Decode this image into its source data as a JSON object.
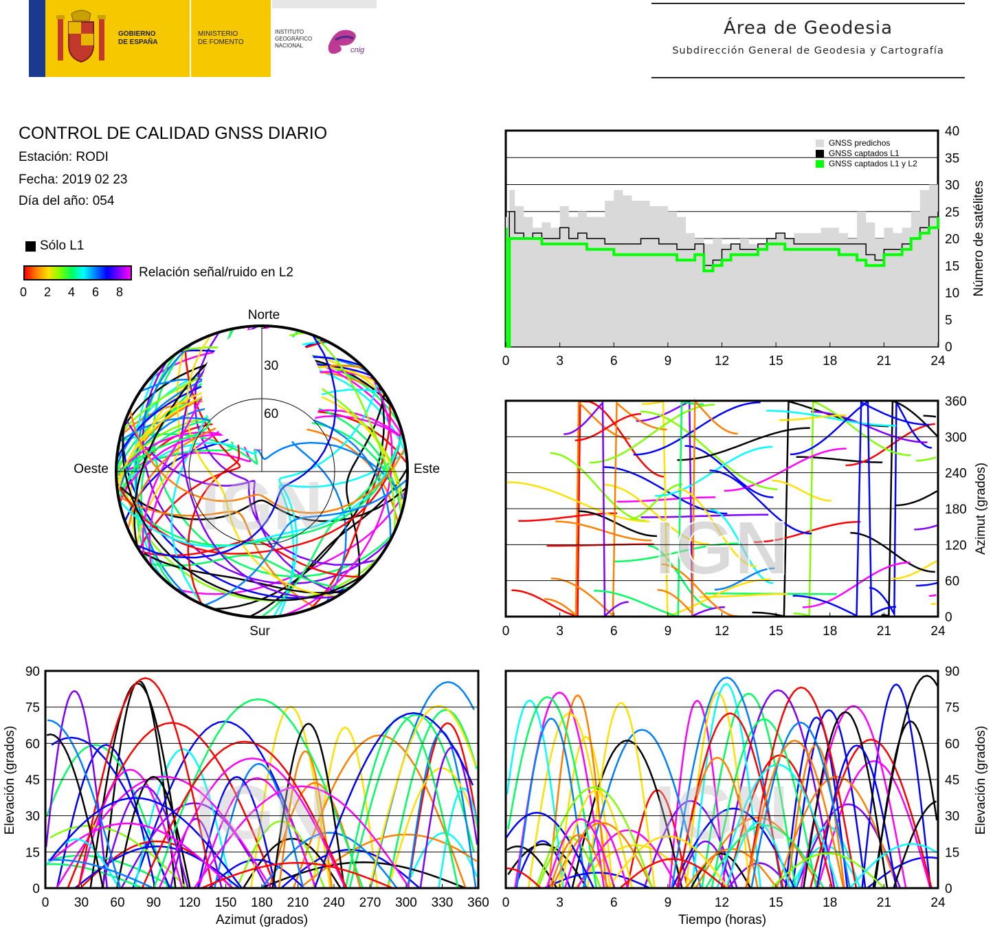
{
  "header": {
    "gov_line1": "GOBIERNO",
    "gov_line2": "DE ESPAÑA",
    "min_line1": "MINISTERIO",
    "min_line2": "DE FOMENTO",
    "ign_line1": "INSTITUTO",
    "ign_line2": "GEOGRÁFICO",
    "ign_line3": "NACIONAL",
    "cnig": "cnig",
    "area_title": "Área de Geodesia",
    "area_subtitle": "Subdirección General de Geodesia y Cartografía"
  },
  "report": {
    "title": "CONTROL DE CALIDAD GNSS DIARIO",
    "station": "Estación: RODI",
    "date": "Fecha: 2019 02 23",
    "doy": "Día del año: 054"
  },
  "legend": {
    "l1_only": "Sólo L1",
    "snr_label": "Relación señal/ruido en L2",
    "snr_ticks": [
      "0",
      "2",
      "4",
      "6",
      "8"
    ]
  },
  "colors": {
    "predicted": "#d9d9d9",
    "l1": "#000000",
    "l1l2": "#00ff00",
    "snr_scale": [
      "#ff0000",
      "#ff8000",
      "#ffe000",
      "#80ff00",
      "#00ff60",
      "#00ffff",
      "#0080ff",
      "#0000ff",
      "#8000ff",
      "#ff00ff"
    ]
  },
  "watermark": "IGN",
  "chart_data": [
    {
      "id": "satellite-count",
      "type": "area",
      "x_ticks": [
        "0",
        "3",
        "6",
        "9",
        "12",
        "15",
        "18",
        "21",
        "24"
      ],
      "y_ticks": [
        "0",
        "5",
        "10",
        "15",
        "20",
        "25",
        "30",
        "35",
        "40"
      ],
      "ylabel": "Número de satélites",
      "xlim": [
        0,
        24
      ],
      "ylim": [
        0,
        40
      ],
      "grid": true,
      "legend_position": "top-right",
      "series": [
        {
          "name": "GNSS predichos",
          "x": [
            0,
            0.2,
            0.5,
            1,
            1.5,
            2,
            2.5,
            3,
            3.5,
            4,
            4.5,
            5,
            5.5,
            6,
            6.5,
            7,
            7.5,
            8,
            8.5,
            9,
            9.5,
            10,
            10.5,
            11,
            11.5,
            12,
            12.5,
            13,
            13.5,
            14,
            14.5,
            15,
            15.5,
            16,
            16.5,
            17,
            17.5,
            18,
            18.5,
            19,
            19.5,
            20,
            20.5,
            21,
            21.5,
            22,
            22.5,
            23,
            23.5,
            24
          ],
          "values": [
            24,
            29,
            26,
            24,
            22,
            23,
            22,
            26,
            24,
            25,
            24,
            24,
            27,
            29,
            28,
            27,
            27,
            26,
            26,
            25,
            24,
            21,
            20,
            19,
            20,
            19,
            19,
            20,
            19,
            19,
            20,
            21,
            20,
            21,
            21,
            21,
            22,
            22,
            21,
            20,
            25,
            23,
            20,
            22,
            21,
            22,
            25,
            29,
            30,
            31
          ]
        },
        {
          "name": "GNSS captados L1",
          "x": [
            0,
            0.2,
            0.5,
            1,
            1.5,
            2,
            2.5,
            3,
            3.5,
            4,
            4.5,
            5,
            5.5,
            6,
            6.5,
            7,
            7.5,
            8,
            8.5,
            9,
            9.5,
            10,
            10.5,
            11,
            11.5,
            12,
            12.5,
            13,
            13.5,
            14,
            14.5,
            15,
            15.5,
            16,
            16.5,
            17,
            17.5,
            18,
            18.5,
            19,
            19.5,
            20,
            20.5,
            21,
            21.5,
            22,
            22.5,
            23,
            23.5,
            24
          ],
          "values": [
            0,
            25,
            21,
            20,
            21,
            20,
            20,
            22,
            20,
            21,
            20,
            20,
            19,
            19,
            19,
            19,
            20,
            20,
            19,
            19,
            18,
            18,
            19,
            15,
            16,
            18,
            19,
            18,
            18,
            19,
            20,
            21,
            20,
            19,
            19,
            19,
            19,
            19,
            19,
            19,
            19,
            17,
            16,
            18,
            18,
            19,
            20,
            22,
            24,
            25
          ]
        },
        {
          "name": "GNSS captados L1 y L2",
          "x": [
            0,
            0.2,
            0.5,
            1,
            1.5,
            2,
            2.5,
            3,
            3.5,
            4,
            4.5,
            5,
            5.5,
            6,
            6.5,
            7,
            7.5,
            8,
            8.5,
            9,
            9.5,
            10,
            10.5,
            11,
            11.5,
            12,
            12.5,
            13,
            13.5,
            14,
            14.5,
            15,
            15.5,
            16,
            16.5,
            17,
            17.5,
            18,
            18.5,
            19,
            19.5,
            20,
            20.5,
            21,
            21.5,
            22,
            22.5,
            23,
            23.5,
            24
          ],
          "values": [
            0,
            20,
            20,
            20,
            20,
            19,
            19,
            19,
            19,
            19,
            18,
            18,
            18,
            17,
            17,
            17,
            17,
            17,
            17,
            17,
            16,
            16,
            17,
            14,
            15,
            16,
            17,
            17,
            17,
            18,
            19,
            19,
            18,
            18,
            18,
            18,
            18,
            18,
            17,
            17,
            16,
            15,
            15,
            17,
            17,
            18,
            20,
            21,
            22,
            24
          ]
        }
      ]
    },
    {
      "id": "skyplot",
      "type": "scatter",
      "directions": {
        "north": "Norte",
        "south": "Sur",
        "east": "Este",
        "west": "Oeste"
      },
      "ring_labels": [
        "30",
        "60"
      ],
      "rings_elevation": [
        30,
        60
      ]
    },
    {
      "id": "azimuth-time",
      "type": "scatter",
      "x_ticks": [
        "0",
        "3",
        "6",
        "9",
        "12",
        "15",
        "18",
        "21",
        "24"
      ],
      "y_ticks": [
        "0",
        "60",
        "120",
        "180",
        "240",
        "300",
        "360"
      ],
      "ylabel": "Azimut (grados)",
      "xlim": [
        0,
        24
      ],
      "ylim": [
        0,
        360
      ],
      "grid": true
    },
    {
      "id": "elevation-azimuth",
      "type": "scatter",
      "x_ticks": [
        "0",
        "30",
        "60",
        "90",
        "120",
        "150",
        "180",
        "210",
        "240",
        "270",
        "300",
        "330",
        "360"
      ],
      "y_ticks": [
        "0",
        "15",
        "30",
        "45",
        "60",
        "75",
        "90"
      ],
      "xlabel": "Azimut (grados)",
      "ylabel": "Elevación (grados)",
      "xlim": [
        0,
        360
      ],
      "ylim": [
        0,
        90
      ],
      "grid": true
    },
    {
      "id": "elevation-time",
      "type": "scatter",
      "x_ticks": [
        "0",
        "3",
        "6",
        "9",
        "12",
        "15",
        "18",
        "21",
        "24"
      ],
      "y_ticks": [
        "0",
        "15",
        "30",
        "45",
        "60",
        "75",
        "90"
      ],
      "xlabel": "Tiempo (horas)",
      "ylabel": "Elevación (grados)",
      "xlim": [
        0,
        24
      ],
      "ylim": [
        0,
        90
      ],
      "grid": true
    }
  ]
}
